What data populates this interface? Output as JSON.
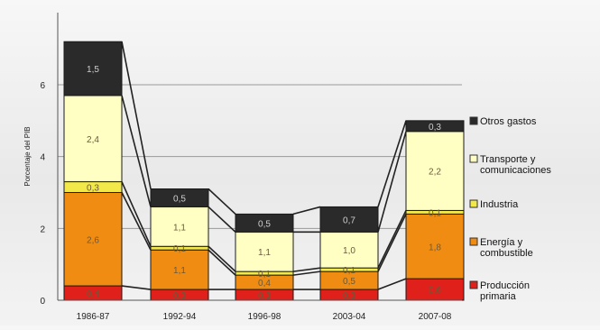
{
  "chart_data": {
    "type": "bar",
    "stacked": true,
    "title": "",
    "xlabel": "",
    "ylabel": "Porcentaje del PIB",
    "ylim": [
      0,
      7.5
    ],
    "yticks": [
      "0",
      "2",
      "4",
      "6"
    ],
    "grid": "horizontal",
    "legend_position": "right",
    "categories": [
      "1986-87",
      "1992-94",
      "1996-98",
      "2003-04",
      "2007-08"
    ],
    "series": [
      {
        "name": "Producción primaria",
        "color": "#e0201b",
        "values": [
          0.4,
          0.3,
          0.3,
          0.3,
          0.6
        ],
        "labels": [
          "0,4",
          "0,3",
          "0,3",
          "0,3",
          "0,6"
        ]
      },
      {
        "name": "Energía y combustible",
        "color": "#f08c12",
        "values": [
          2.6,
          1.1,
          0.4,
          0.5,
          1.8
        ],
        "labels": [
          "2,6",
          "1,1",
          "0,4",
          "0,5",
          "1,8"
        ]
      },
      {
        "name": "Industria",
        "color": "#f2e84a",
        "values": [
          0.3,
          0.1,
          0.1,
          0.1,
          0.1
        ],
        "labels": [
          "0,3",
          "0,1",
          "0,1",
          "0,1",
          "0,1"
        ]
      },
      {
        "name": "Transporte y comunicaciones",
        "color": "#ffffc4",
        "values": [
          2.4,
          1.1,
          1.1,
          1.0,
          2.2
        ],
        "labels": [
          "2,4",
          "1,1",
          "1,1",
          "1,0",
          "2,2"
        ]
      },
      {
        "name": "Otros gastos",
        "color": "#2a2a2a",
        "values": [
          1.5,
          0.5,
          0.5,
          0.7,
          0.3
        ],
        "labels": [
          "1,5",
          "0,5",
          "0,5",
          "0,7",
          "0,3"
        ]
      }
    ],
    "legend_lines": [
      [
        "Otros gastos"
      ],
      [
        "Transporte y",
        "comunicaciones"
      ],
      [
        "Industria"
      ],
      [
        "Energía y",
        "combustible"
      ],
      [
        "Producción",
        "primaria"
      ]
    ]
  }
}
